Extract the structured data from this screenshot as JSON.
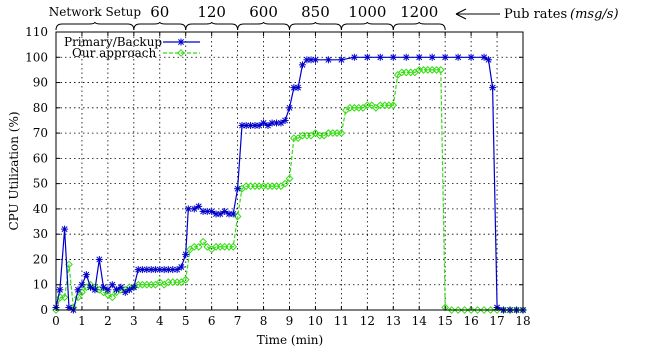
{
  "chart_data": {
    "type": "line",
    "xlabel": "Time (min)",
    "ylabel": "CPU Utilization (%)",
    "xlim": [
      0,
      18
    ],
    "ylim": [
      0,
      110
    ],
    "x_ticks": [
      0,
      1,
      2,
      3,
      4,
      5,
      6,
      7,
      8,
      9,
      10,
      11,
      12,
      13,
      14,
      15,
      16,
      17,
      18
    ],
    "y_ticks": [
      0,
      10,
      20,
      30,
      40,
      50,
      60,
      70,
      80,
      90,
      100,
      110
    ],
    "grid": true,
    "legend_placement": "top-left",
    "phases": [
      {
        "label": "Network Setup",
        "start": 0,
        "end": 3
      },
      {
        "label": "60",
        "start": 3,
        "end": 5
      },
      {
        "label": "120",
        "start": 5,
        "end": 7
      },
      {
        "label": "600",
        "start": 7,
        "end": 9
      },
      {
        "label": "850",
        "start": 9,
        "end": 11
      },
      {
        "label": "1000",
        "start": 11,
        "end": 13
      },
      {
        "label": "1200",
        "start": 13,
        "end": 15
      }
    ],
    "pub_rates_label": "Pub rates",
    "pub_rates_unit": "(msg/s)",
    "series": [
      {
        "name": "Primary/Backup",
        "color": "#0000cc",
        "marker": "star",
        "points": [
          [
            0.0,
            1
          ],
          [
            0.15,
            8
          ],
          [
            0.33,
            32
          ],
          [
            0.5,
            1
          ],
          [
            0.67,
            0
          ],
          [
            0.85,
            8
          ],
          [
            1.0,
            10
          ],
          [
            1.17,
            14
          ],
          [
            1.33,
            9
          ],
          [
            1.5,
            8
          ],
          [
            1.67,
            20
          ],
          [
            1.83,
            9
          ],
          [
            2.0,
            8
          ],
          [
            2.17,
            10
          ],
          [
            2.33,
            8
          ],
          [
            2.5,
            9
          ],
          [
            2.67,
            7
          ],
          [
            2.83,
            8
          ],
          [
            3.0,
            9
          ],
          [
            3.17,
            16
          ],
          [
            3.33,
            16
          ],
          [
            3.5,
            16
          ],
          [
            3.67,
            16
          ],
          [
            3.83,
            16
          ],
          [
            4.0,
            16
          ],
          [
            4.17,
            16
          ],
          [
            4.33,
            16
          ],
          [
            4.5,
            16
          ],
          [
            4.67,
            16
          ],
          [
            4.83,
            17
          ],
          [
            5.0,
            22
          ],
          [
            5.1,
            40
          ],
          [
            5.33,
            40
          ],
          [
            5.5,
            41
          ],
          [
            5.67,
            39
          ],
          [
            5.83,
            39
          ],
          [
            6.0,
            39
          ],
          [
            6.17,
            38
          ],
          [
            6.33,
            38
          ],
          [
            6.5,
            39
          ],
          [
            6.67,
            38
          ],
          [
            6.83,
            38
          ],
          [
            7.0,
            48
          ],
          [
            7.17,
            73
          ],
          [
            7.33,
            73
          ],
          [
            7.5,
            73
          ],
          [
            7.67,
            73
          ],
          [
            7.83,
            73
          ],
          [
            8.0,
            74
          ],
          [
            8.17,
            73
          ],
          [
            8.33,
            74
          ],
          [
            8.5,
            74
          ],
          [
            8.67,
            74
          ],
          [
            8.83,
            75
          ],
          [
            9.0,
            80
          ],
          [
            9.17,
            88
          ],
          [
            9.33,
            88
          ],
          [
            9.5,
            97
          ],
          [
            9.67,
            99
          ],
          [
            9.83,
            99
          ],
          [
            10.0,
            99
          ],
          [
            10.5,
            99
          ],
          [
            11.0,
            99
          ],
          [
            11.5,
            100
          ],
          [
            12.0,
            100
          ],
          [
            12.5,
            100
          ],
          [
            13.0,
            100
          ],
          [
            13.5,
            100
          ],
          [
            14.0,
            100
          ],
          [
            14.5,
            100
          ],
          [
            15.0,
            100
          ],
          [
            15.5,
            100
          ],
          [
            16.0,
            100
          ],
          [
            16.5,
            100
          ],
          [
            16.67,
            99
          ],
          [
            16.83,
            88
          ],
          [
            17.0,
            1
          ],
          [
            17.25,
            0
          ],
          [
            17.5,
            0
          ],
          [
            17.75,
            0
          ],
          [
            18.0,
            0
          ]
        ]
      },
      {
        "name": "Our approach",
        "color": "#33dd11",
        "marker": "diamond",
        "points": [
          [
            0.0,
            0
          ],
          [
            0.17,
            5
          ],
          [
            0.33,
            5
          ],
          [
            0.5,
            18
          ],
          [
            0.67,
            1
          ],
          [
            0.85,
            5
          ],
          [
            1.0,
            7
          ],
          [
            1.17,
            9
          ],
          [
            1.33,
            10
          ],
          [
            1.5,
            9
          ],
          [
            1.67,
            8
          ],
          [
            1.83,
            7
          ],
          [
            2.0,
            6
          ],
          [
            2.17,
            5
          ],
          [
            2.33,
            7
          ],
          [
            2.5,
            8
          ],
          [
            2.67,
            8
          ],
          [
            2.83,
            9
          ],
          [
            3.0,
            9
          ],
          [
            3.17,
            10
          ],
          [
            3.33,
            10
          ],
          [
            3.5,
            10
          ],
          [
            3.67,
            10
          ],
          [
            3.83,
            10
          ],
          [
            4.0,
            11
          ],
          [
            4.17,
            10
          ],
          [
            4.33,
            11
          ],
          [
            4.5,
            11
          ],
          [
            4.67,
            11
          ],
          [
            4.83,
            11
          ],
          [
            5.0,
            12
          ],
          [
            5.17,
            24
          ],
          [
            5.33,
            25
          ],
          [
            5.5,
            25
          ],
          [
            5.67,
            27
          ],
          [
            5.83,
            25
          ],
          [
            6.0,
            24
          ],
          [
            6.17,
            25
          ],
          [
            6.33,
            25
          ],
          [
            6.5,
            25
          ],
          [
            6.67,
            25
          ],
          [
            6.83,
            25
          ],
          [
            7.0,
            37
          ],
          [
            7.17,
            48
          ],
          [
            7.33,
            49
          ],
          [
            7.5,
            49
          ],
          [
            7.67,
            49
          ],
          [
            7.83,
            49
          ],
          [
            8.0,
            49
          ],
          [
            8.17,
            49
          ],
          [
            8.33,
            49
          ],
          [
            8.5,
            49
          ],
          [
            8.67,
            49
          ],
          [
            8.83,
            50
          ],
          [
            9.0,
            52
          ],
          [
            9.17,
            68
          ],
          [
            9.33,
            68
          ],
          [
            9.5,
            69
          ],
          [
            9.67,
            69
          ],
          [
            9.83,
            69
          ],
          [
            10.0,
            70
          ],
          [
            10.17,
            69
          ],
          [
            10.33,
            69
          ],
          [
            10.5,
            70
          ],
          [
            10.67,
            70
          ],
          [
            10.83,
            70
          ],
          [
            11.0,
            70
          ],
          [
            11.17,
            79
          ],
          [
            11.33,
            80
          ],
          [
            11.5,
            80
          ],
          [
            11.67,
            80
          ],
          [
            11.83,
            80
          ],
          [
            12.0,
            81
          ],
          [
            12.17,
            81
          ],
          [
            12.33,
            80
          ],
          [
            12.5,
            81
          ],
          [
            12.67,
            81
          ],
          [
            12.83,
            81
          ],
          [
            13.0,
            81
          ],
          [
            13.17,
            93
          ],
          [
            13.33,
            94
          ],
          [
            13.5,
            94
          ],
          [
            13.67,
            94
          ],
          [
            13.83,
            94
          ],
          [
            14.0,
            95
          ],
          [
            14.17,
            95
          ],
          [
            14.33,
            95
          ],
          [
            14.5,
            95
          ],
          [
            14.67,
            95
          ],
          [
            14.83,
            95
          ],
          [
            15.0,
            1
          ],
          [
            15.25,
            0
          ],
          [
            15.5,
            0
          ],
          [
            15.75,
            0
          ],
          [
            16.0,
            0
          ],
          [
            16.25,
            0
          ],
          [
            16.5,
            0
          ],
          [
            16.75,
            0
          ],
          [
            17.0,
            0
          ],
          [
            17.25,
            0
          ],
          [
            17.5,
            0
          ],
          [
            17.75,
            0
          ],
          [
            18.0,
            0
          ]
        ]
      }
    ]
  }
}
